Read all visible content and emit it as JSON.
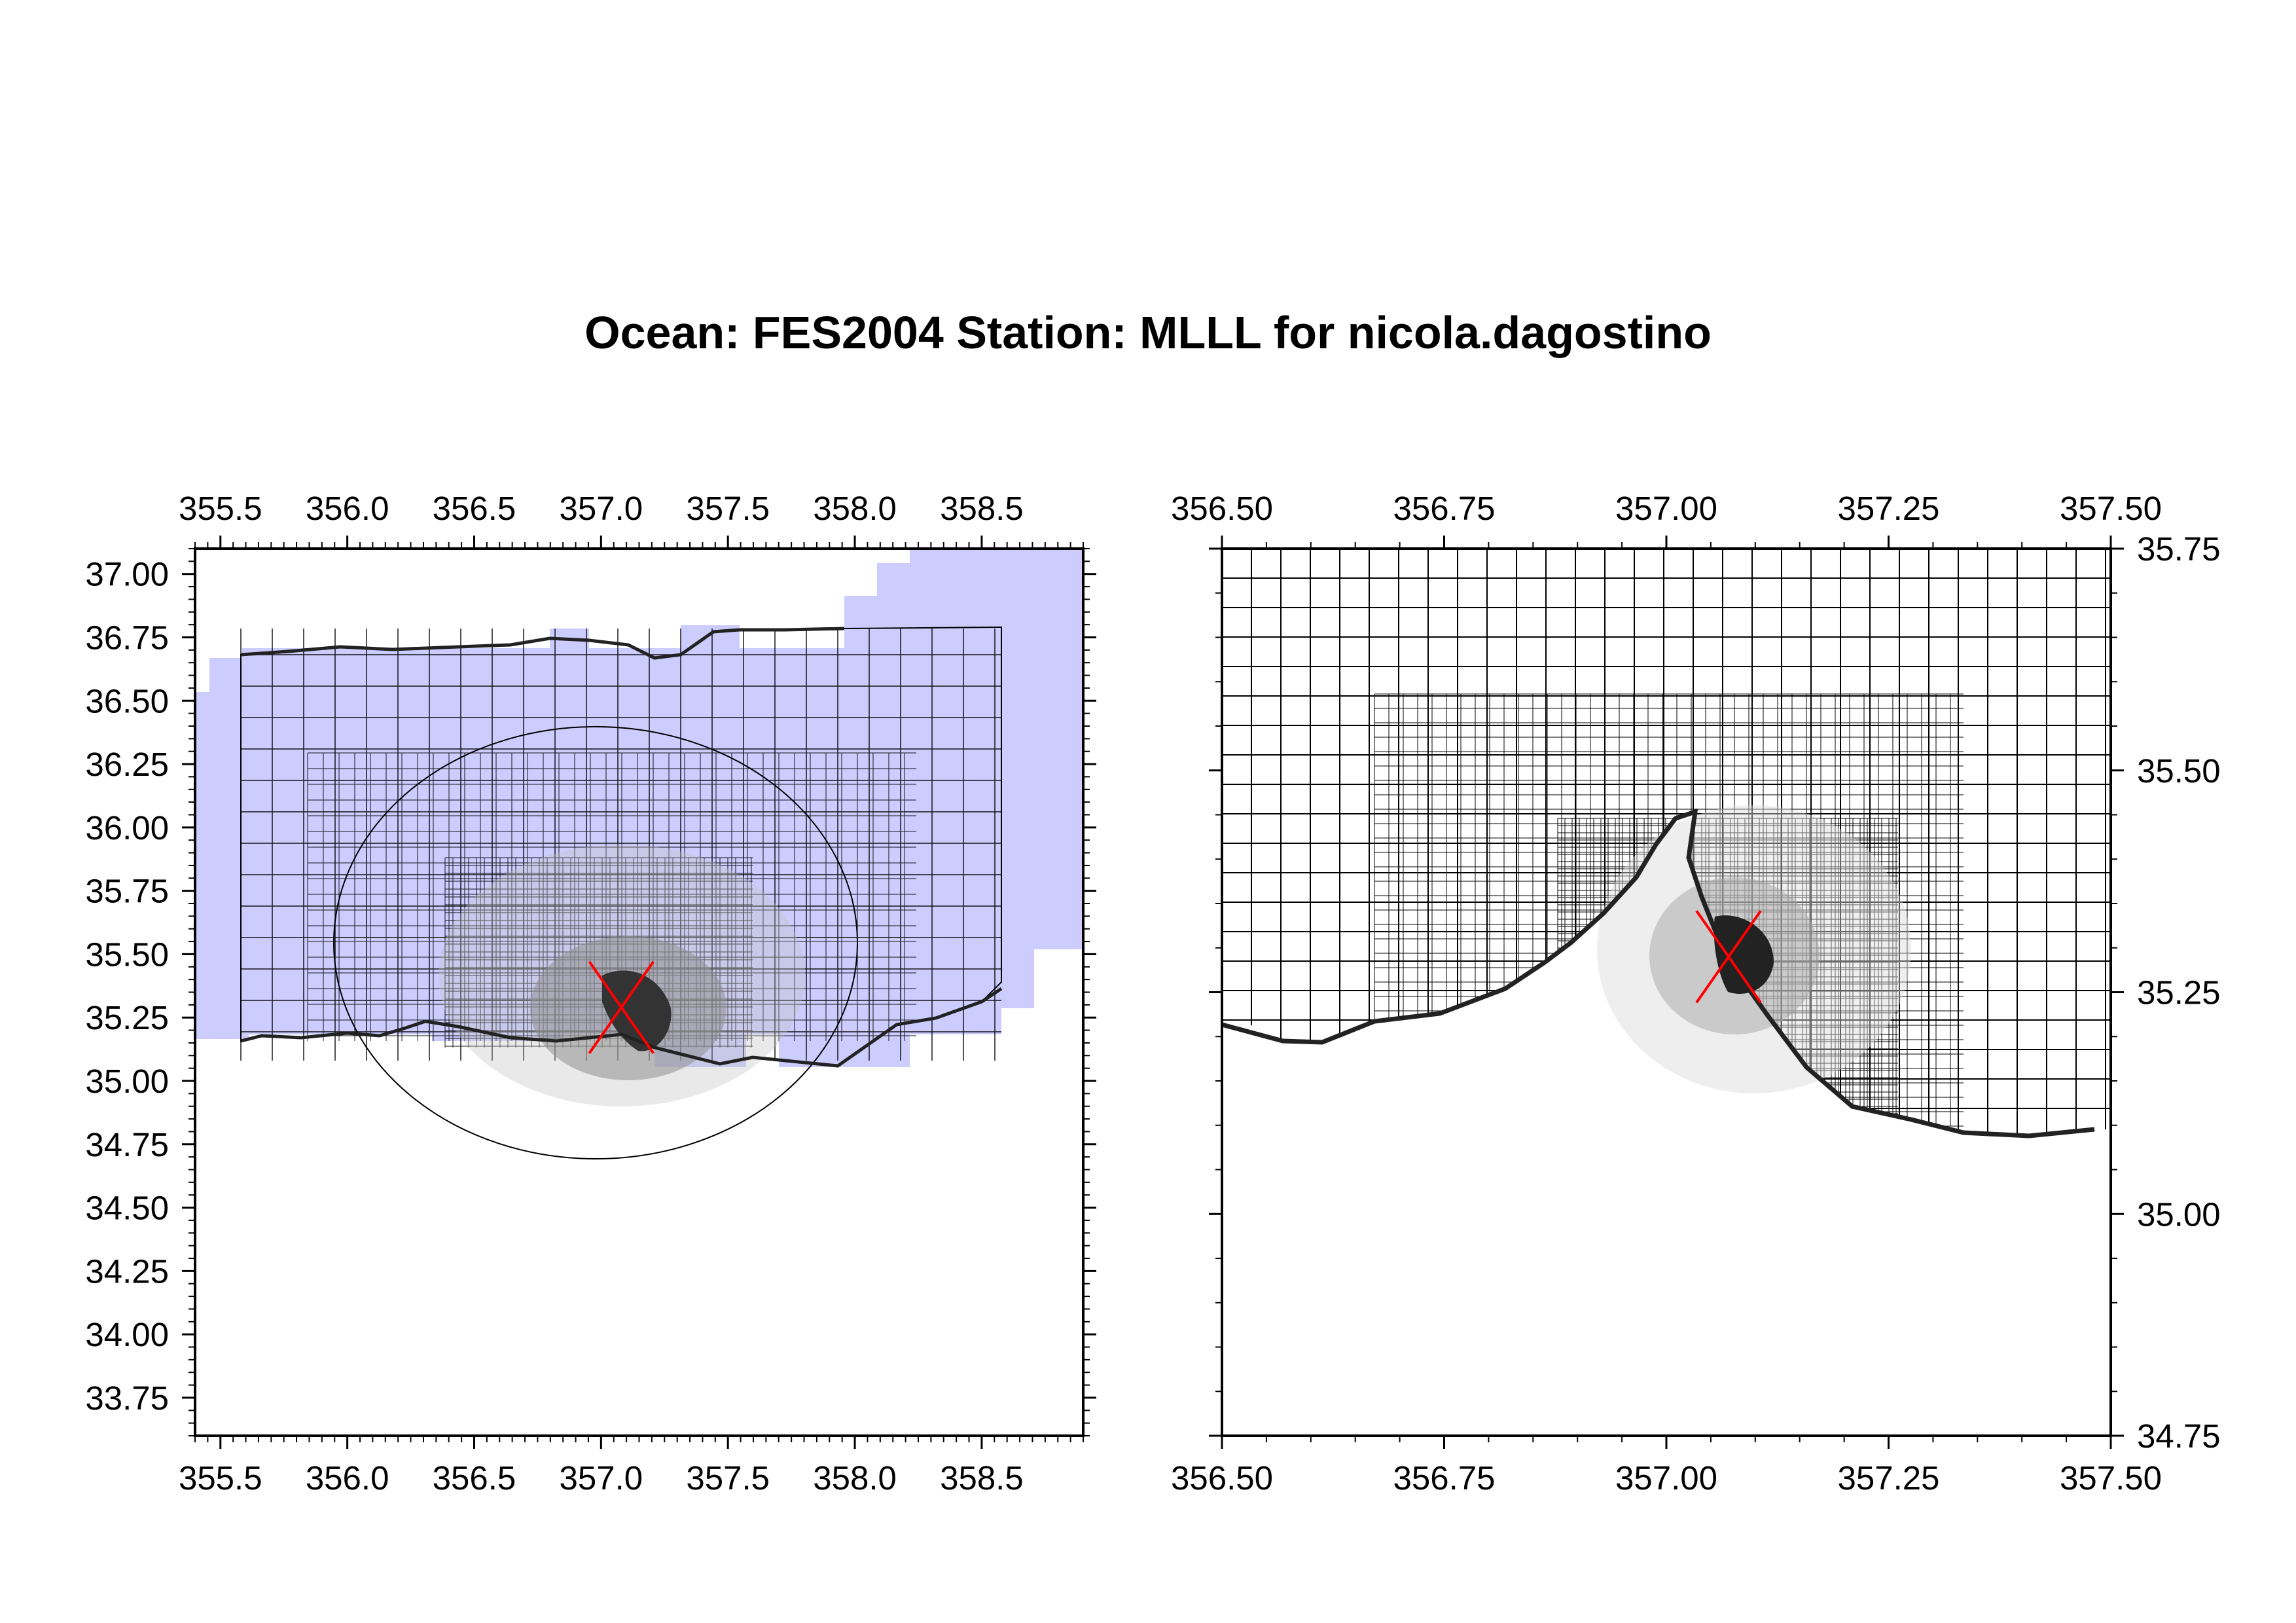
{
  "title": "Ocean: FES2004  Station: MLLL  for nicola.dagostino",
  "station_marker_color": "#ff0000",
  "land_fill_color": "#ccccff",
  "grid_line_color": "#000000",
  "panels": [
    {
      "name": "overview-map",
      "x_range": [
        355.4,
        358.9
      ],
      "y_range": [
        33.6,
        37.1
      ],
      "x_ticks": [
        "355.5",
        "356.0",
        "356.5",
        "357.0",
        "357.5",
        "358.0",
        "358.5"
      ],
      "y_ticks": [
        "37.00",
        "36.75",
        "36.50",
        "36.25",
        "36.00",
        "35.75",
        "35.50",
        "35.25",
        "35.00",
        "34.75",
        "34.50",
        "34.25",
        "34.00",
        "33.75"
      ],
      "y_axis_side": "left",
      "station": [
        357.08,
        35.29
      ]
    },
    {
      "name": "zoom-map",
      "x_range": [
        356.5,
        357.5
      ],
      "y_range": [
        34.75,
        35.75
      ],
      "x_ticks": [
        "356.50",
        "356.75",
        "357.00",
        "357.25",
        "357.50"
      ],
      "y_ticks": [
        "35.75",
        "35.50",
        "35.25",
        "35.00",
        "34.75"
      ],
      "y_axis_side": "right",
      "station": [
        357.07,
        35.29
      ]
    }
  ]
}
